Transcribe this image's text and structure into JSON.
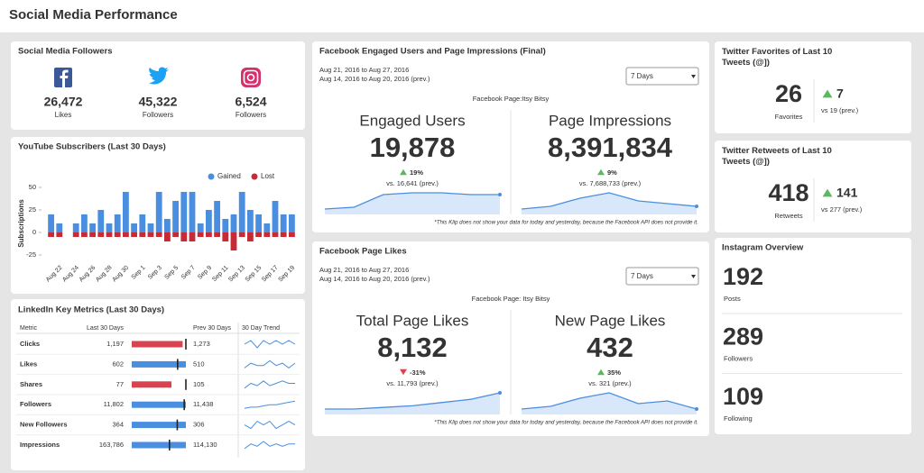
{
  "header": {
    "title": "Social Media Performance"
  },
  "followers": {
    "title": "Social Media Followers",
    "items": [
      {
        "value": "26,472",
        "label": "Likes"
      },
      {
        "value": "45,322",
        "label": "Followers"
      },
      {
        "value": "6,524",
        "label": "Followers"
      }
    ]
  },
  "youtube": {
    "title": "YouTube Subscribers (Last 30 Days)",
    "type": "bar",
    "ylabel": "Subscriptions",
    "categories": [
      null,
      "Aug 22",
      null,
      "Aug 24",
      null,
      "Aug 26",
      null,
      "Aug 28",
      null,
      "Aug 30",
      null,
      "Sep 1",
      null,
      "Sep 3",
      null,
      "Sep 5",
      null,
      "Sep 7",
      null,
      "Sep 9",
      null,
      "Sep 11",
      null,
      "Sep 13",
      null,
      "Sep 15",
      null,
      "Sep 17",
      null,
      "Sep 19"
    ],
    "series": [
      {
        "name": "Gained",
        "color": "#4a8ee0",
        "values": [
          20,
          10,
          0,
          10,
          20,
          10,
          25,
          10,
          20,
          45,
          10,
          20,
          10,
          45,
          15,
          35,
          45,
          45,
          10,
          25,
          35,
          15,
          20,
          45,
          25,
          20,
          10,
          35,
          20,
          20
        ]
      },
      {
        "name": "Lost",
        "color": "#c52a36",
        "values": [
          -5,
          -5,
          0,
          -5,
          -5,
          -5,
          -5,
          -5,
          -5,
          -5,
          -5,
          -5,
          -5,
          -5,
          -10,
          -5,
          -10,
          -10,
          -5,
          -5,
          -5,
          -10,
          -20,
          -5,
          -10,
          -5,
          -5,
          -5,
          -5,
          -5
        ]
      }
    ],
    "ylim": [
      -30,
      50
    ],
    "yticks": [
      -25,
      0,
      25,
      50
    ],
    "legend": "top-right"
  },
  "linkedin": {
    "title": "LinkedIn Key Metrics (Last 30 Days)",
    "columns": [
      "Metric",
      "Last 30 Days",
      "Prev 30 Days",
      "30 Day Trend"
    ],
    "rows": [
      {
        "metric": "Clicks",
        "last": {
          "value": 1197,
          "label": "1,197"
        },
        "prev": {
          "value": 1273,
          "label": "1,273"
        },
        "trend": [
          5,
          6,
          4,
          6,
          5,
          6,
          5,
          6,
          5
        ]
      },
      {
        "metric": "Likes",
        "last": {
          "value": 602,
          "label": "602"
        },
        "prev": {
          "value": 510,
          "label": "510"
        },
        "trend": [
          4,
          6,
          5,
          5,
          7,
          5,
          6,
          4,
          6
        ]
      },
      {
        "metric": "Shares",
        "last": {
          "value": 77,
          "label": "77"
        },
        "prev": {
          "value": 105,
          "label": "105"
        },
        "trend": [
          3,
          5,
          4,
          6,
          4,
          5,
          6,
          5,
          5
        ]
      },
      {
        "metric": "Followers",
        "last": {
          "value": 11802,
          "label": "11,802"
        },
        "prev": {
          "value": 11438,
          "label": "11,438"
        },
        "trend": [
          2,
          3,
          3,
          4,
          5,
          5,
          6,
          7,
          8
        ]
      },
      {
        "metric": "New Followers",
        "last": {
          "value": 364,
          "label": "364"
        },
        "prev": {
          "value": 306,
          "label": "306"
        },
        "trend": [
          5,
          4,
          6,
          5,
          6,
          4,
          5,
          6,
          5
        ]
      },
      {
        "metric": "Impressions",
        "last": {
          "value": 163786,
          "label": "163,786"
        },
        "prev": {
          "value": 114130,
          "label": "114,130"
        },
        "trend": [
          4,
          6,
          5,
          7,
          5,
          6,
          5,
          6,
          6
        ]
      }
    ]
  },
  "facebook_engaged": {
    "title": "Facebook Engaged Users and Page Impressions (Final)",
    "current_range": "Aug 21, 2016 to Aug 27, 2016",
    "previous_range": "Aug 14, 2016 to Aug 20, 2016 (prev.)",
    "period": "7 Days",
    "page": "Facebook Page:Itsy Bitsy",
    "metrics": [
      {
        "name": "Engaged Users",
        "value": "19,878",
        "change": "19%",
        "previous": "vs. 16,641 (prev.)",
        "trend": [
          2,
          2.5,
          6,
          6.5,
          6.5,
          6,
          6
        ]
      },
      {
        "name": "Page Impressions",
        "value": "8,391,834",
        "change": "9%",
        "previous": "vs. 7,688,733 (prev.)",
        "trend": [
          2,
          3,
          6,
          8,
          5,
          4,
          3
        ]
      }
    ],
    "note": "*This Klip does not show your data for today and yesterday, because the Facebook API does not provide it."
  },
  "facebook_likes": {
    "title": "Facebook Page Likes",
    "current_range": "Aug 21, 2016 to Aug 27, 2016",
    "previous_range": "Aug 14, 2016 to Aug 20, 2016 (prev.)",
    "period": "7 Days",
    "page": "Facebook Page: Itsy Bitsy",
    "metrics": [
      {
        "name": "Total Page Likes",
        "value": "8,132",
        "change": "-31%",
        "previous": "vs. 11,793 (prev.)",
        "trend": [
          2,
          2,
          2.5,
          3,
          4,
          5,
          7
        ]
      },
      {
        "name": "New Page Likes",
        "value": "432",
        "change": "35%",
        "previous": "vs. 321 (prev.)",
        "trend": [
          1,
          2,
          5,
          7,
          3,
          4,
          1
        ]
      }
    ],
    "note": "*This Klip does not show your data for today and yesterday, because the Facebook API does not provide it."
  },
  "twitter_favorites": {
    "title": "Twitter Favorites of Last 10 Tweets (@])",
    "value": "26",
    "label": "Favorites",
    "change": "7",
    "previous": "vs 19 (prev.)"
  },
  "twitter_retweets": {
    "title": "Twitter Retweets of Last 10 Tweets (@])",
    "value": "418",
    "label": "Retweets",
    "change": "141",
    "previous": "vs 277 (prev.)"
  },
  "instagram": {
    "title": "Instagram Overview",
    "items": [
      {
        "value": "192",
        "label": "Posts"
      },
      {
        "value": "289",
        "label": "Followers"
      },
      {
        "value": "109",
        "label": "Following"
      }
    ]
  }
}
